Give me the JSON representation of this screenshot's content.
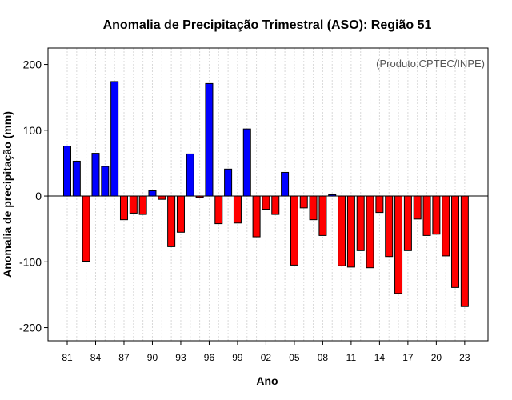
{
  "chart_data": {
    "type": "bar",
    "title": "Anomalia de Precipitação Trimestral (ASO): Região 51",
    "xlabel": "Ano",
    "ylabel": "Anomalia de precipitação (mm)",
    "note": "(Produto:CPTEC/INPE)",
    "ylim": [
      -220,
      225
    ],
    "yticks": [
      -200,
      -100,
      0,
      100,
      200
    ],
    "positive_color": "#0000ff",
    "negative_color": "#ff0000",
    "categories": [
      "1981",
      "1982",
      "1983",
      "1984",
      "1985",
      "1986",
      "1987",
      "1988",
      "1989",
      "1990",
      "1991",
      "1992",
      "1993",
      "1994",
      "1995",
      "1996",
      "1997",
      "1998",
      "1999",
      "2000",
      "2001",
      "2002",
      "2003",
      "2004",
      "2005",
      "2006",
      "2007",
      "2008",
      "2009",
      "2010",
      "2011",
      "2012",
      "2013",
      "2014",
      "2015",
      "2016",
      "2017",
      "2018",
      "2019",
      "2020",
      "2021",
      "2022",
      "2023"
    ],
    "values": [
      76,
      53,
      -99,
      65,
      45,
      174,
      -36,
      -26,
      -28,
      8,
      -5,
      -77,
      -55,
      64,
      -2,
      171,
      -42,
      41,
      -41,
      102,
      -62,
      -20,
      -28,
      36,
      -105,
      -18,
      -36,
      -60,
      2,
      -106,
      -108,
      -83,
      -109,
      -25,
      -92,
      -148,
      -83,
      -35,
      -60,
      -58,
      -91,
      -139,
      -168
    ],
    "xtick_labels": [
      "81",
      "84",
      "87",
      "90",
      "93",
      "96",
      "99",
      "02",
      "05",
      "08",
      "11",
      "14",
      "17",
      "20",
      "23"
    ],
    "xtick_years": [
      1981,
      1984,
      1987,
      1990,
      1993,
      1996,
      1999,
      2002,
      2005,
      2008,
      2011,
      2014,
      2017,
      2020,
      2023
    ]
  }
}
